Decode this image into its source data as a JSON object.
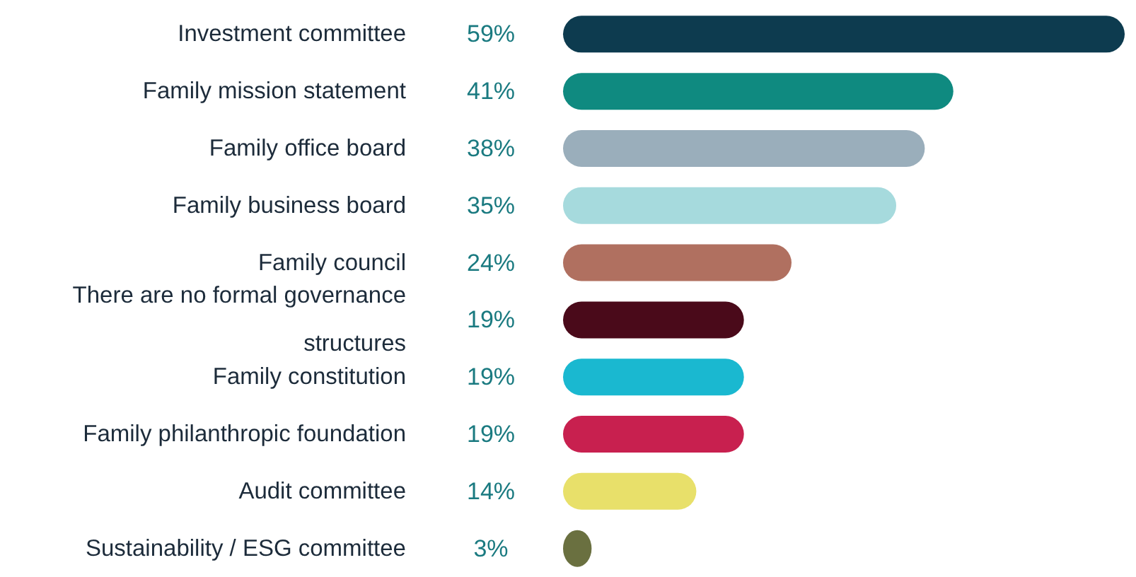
{
  "chart_data": {
    "type": "bar",
    "orientation": "horizontal",
    "data_labels": true,
    "categories": [
      "Investment committee",
      "Family mission statement",
      "Family office board",
      "Family business board",
      "Family council",
      "There are no formal governance structures",
      "Family constitution",
      "Family philanthropic foundation",
      "Audit committee",
      "Sustainability / ESG committee"
    ],
    "values": [
      59,
      41,
      38,
      35,
      24,
      19,
      19,
      19,
      14,
      3
    ],
    "value_labels": [
      "59%",
      "41%",
      "38%",
      "35%",
      "24%",
      "19%",
      "19%",
      "19%",
      "14%",
      "3%"
    ],
    "colors": [
      "#0d3b4f",
      "#0f8a80",
      "#9aaebb",
      "#a6dadd",
      "#b07060",
      "#4a0a1a",
      "#1ab8d0",
      "#c8204f",
      "#e8e06a",
      "#6a7040"
    ]
  }
}
